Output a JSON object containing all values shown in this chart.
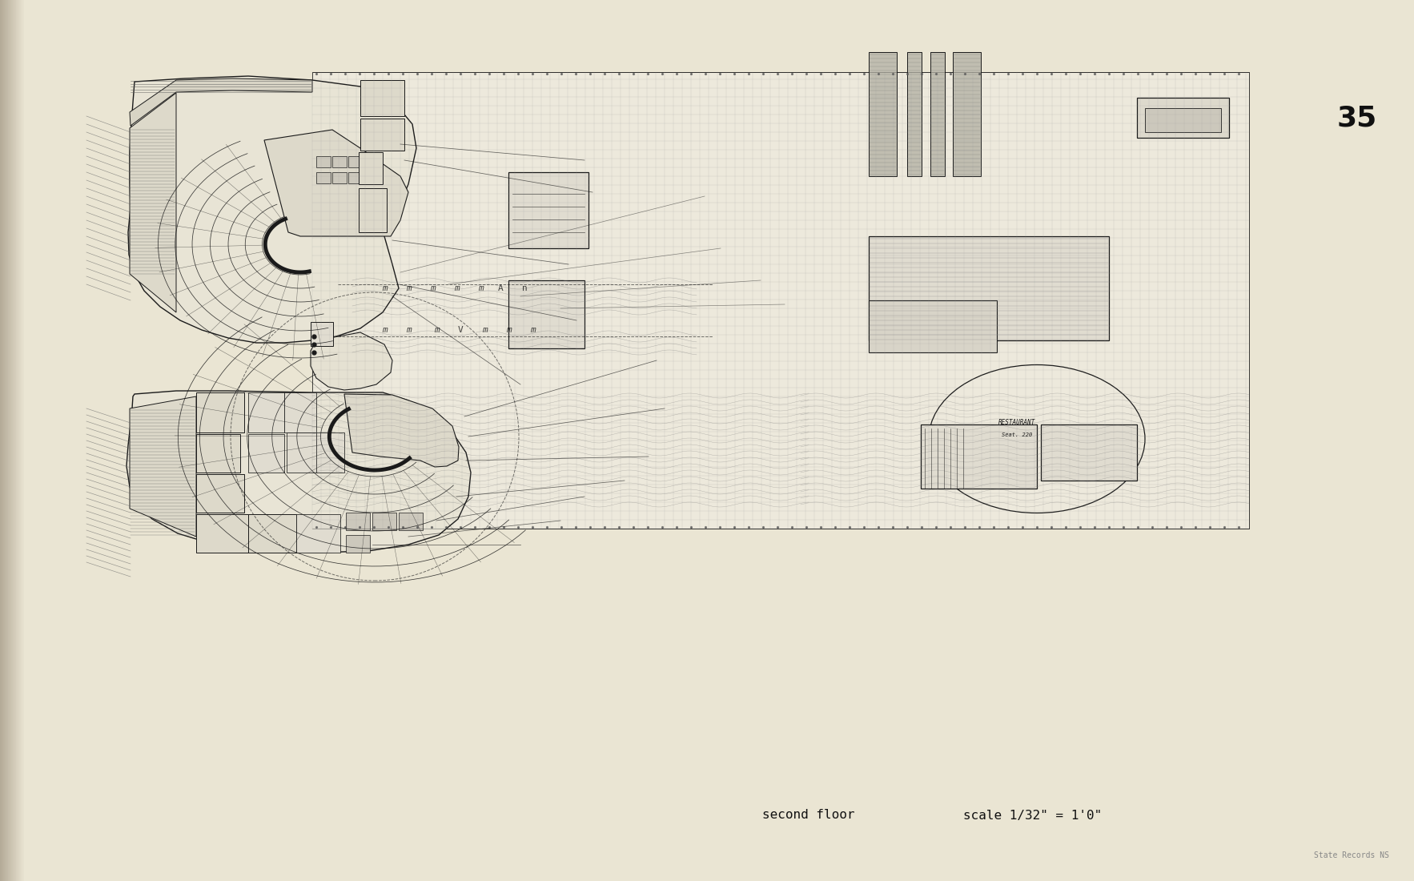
{
  "bg_color": "#EAE5D3",
  "page_bg": "#EAE5D3",
  "line_color": "#1a1a1a",
  "page_number": "35",
  "bottom_text_left": "second floor",
  "bottom_text_right": "scale 1/32\" = 1'0\"",
  "watermark": "State Records NS",
  "figsize": [
    17.66,
    11.0
  ],
  "dpi": 100,
  "spine_color": "#6b4c2a",
  "grid_color": "#888888",
  "wall_color": "#111111",
  "fill_light": "#e5e1d0",
  "fill_med": "#d0ccc0",
  "fill_dark": "#b0aca0",
  "hatch_color": "#555555"
}
